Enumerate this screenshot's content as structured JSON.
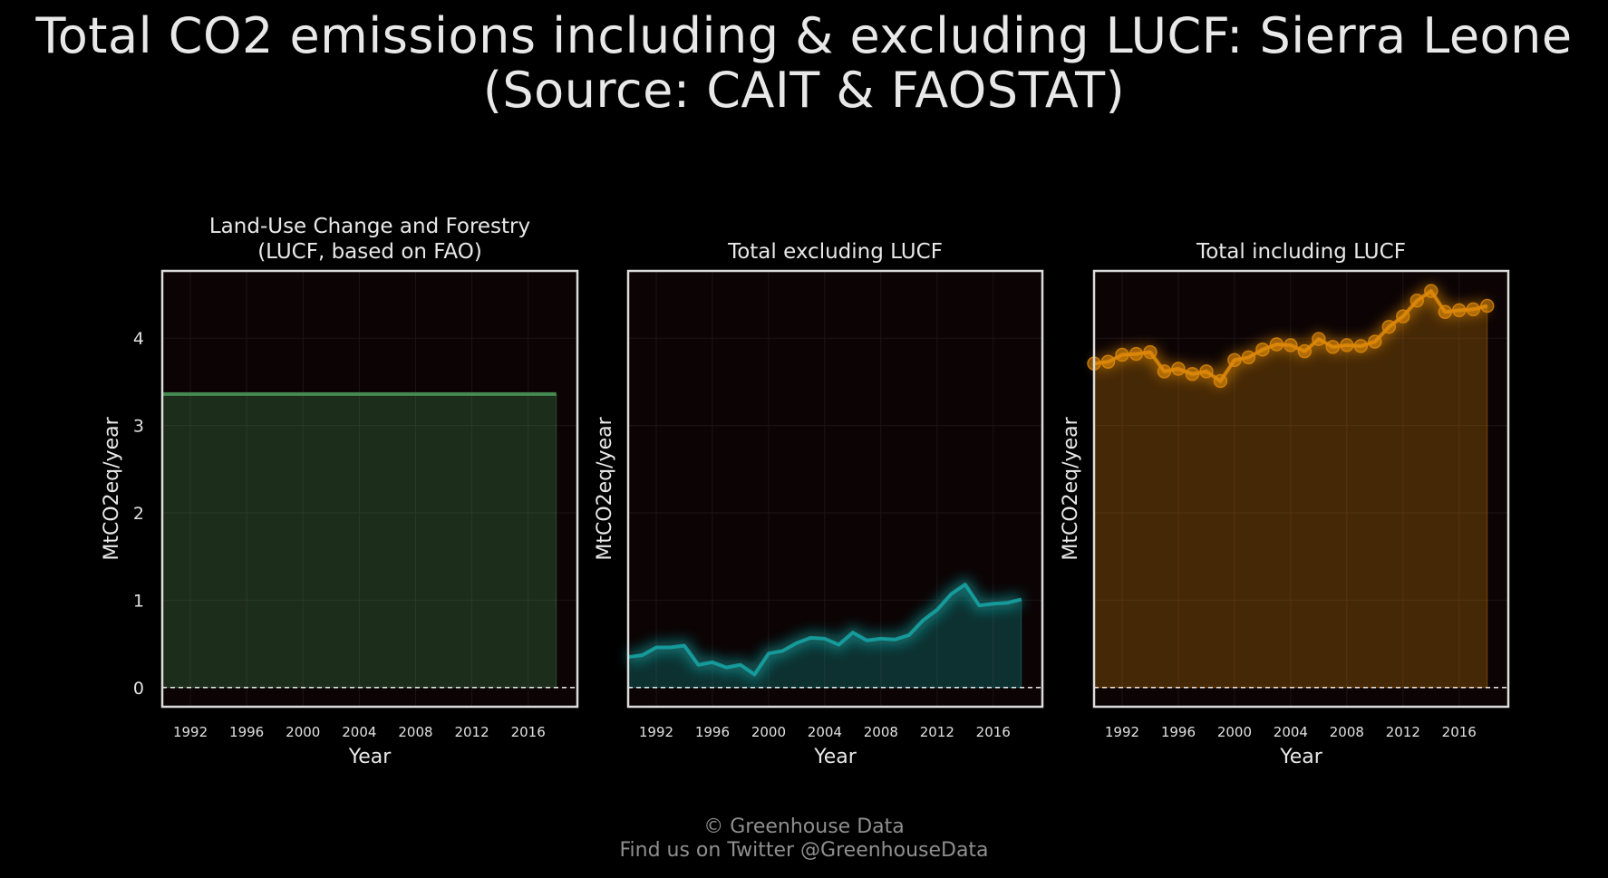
{
  "title_line1": "Total CO2 emissions including & excluding LUCF: Sierra Leone",
  "title_line2": "(Source: CAIT & FAOSTAT)",
  "credit_line1": "© Greenhouse Data",
  "credit_line2": "Find us on Twitter @GreenhouseData",
  "colors": {
    "background": "#000000",
    "panel_bg": "#0b0304",
    "lucf": "#4e9a5a",
    "excl": "#17a5a5",
    "incl": "#e08a0a",
    "frame": "#dcdcdc"
  },
  "chart_data": [
    {
      "type": "area",
      "title": "Land-Use Change and Forestry (LUCF, based on FAO)",
      "title_lines": [
        "Land-Use Change and Forestry",
        "(LUCF, based on FAO)"
      ],
      "xlabel": "Year",
      "ylabel": "MtCO2eq/year",
      "xlim": [
        1990,
        2019.5
      ],
      "ylim": [
        -0.22,
        4.77
      ],
      "xticks": [
        1992,
        1996,
        2000,
        2004,
        2008,
        2012,
        2016
      ],
      "yticks": [
        0,
        1,
        2,
        3,
        4
      ],
      "show_yticks": true,
      "markers": false,
      "color": "#4e9a5a",
      "x": [
        1990,
        1991,
        1992,
        1993,
        1994,
        1995,
        1996,
        1997,
        1998,
        1999,
        2000,
        2001,
        2002,
        2003,
        2004,
        2005,
        2006,
        2007,
        2008,
        2009,
        2010,
        2011,
        2012,
        2013,
        2014,
        2015,
        2016,
        2017,
        2018
      ],
      "y": [
        3.36,
        3.36,
        3.36,
        3.36,
        3.36,
        3.36,
        3.36,
        3.36,
        3.36,
        3.36,
        3.36,
        3.36,
        3.36,
        3.36,
        3.36,
        3.36,
        3.36,
        3.36,
        3.36,
        3.36,
        3.36,
        3.36,
        3.36,
        3.36,
        3.36,
        3.36,
        3.36,
        3.36,
        3.36
      ]
    },
    {
      "type": "area",
      "title": "Total excluding LUCF",
      "title_lines": [
        "Total excluding LUCF"
      ],
      "xlabel": "Year",
      "ylabel": "MtCO2eq/year",
      "xlim": [
        1990,
        2019.5
      ],
      "ylim": [
        -0.22,
        4.77
      ],
      "xticks": [
        1992,
        1996,
        2000,
        2004,
        2008,
        2012,
        2016
      ],
      "yticks": [
        0,
        1,
        2,
        3,
        4
      ],
      "show_yticks": false,
      "markers": false,
      "color": "#17a5a5",
      "x": [
        1990,
        1991,
        1992,
        1993,
        1994,
        1995,
        1996,
        1997,
        1998,
        1999,
        2000,
        2001,
        2002,
        2003,
        2004,
        2005,
        2006,
        2007,
        2008,
        2009,
        2010,
        2011,
        2012,
        2013,
        2014,
        2015,
        2016,
        2017,
        2018
      ],
      "y": [
        0.35,
        0.37,
        0.46,
        0.46,
        0.48,
        0.26,
        0.29,
        0.23,
        0.26,
        0.15,
        0.39,
        0.42,
        0.51,
        0.57,
        0.56,
        0.49,
        0.63,
        0.54,
        0.56,
        0.55,
        0.6,
        0.77,
        0.89,
        1.07,
        1.18,
        0.94,
        0.96,
        0.97,
        1.01
      ]
    },
    {
      "type": "area",
      "title": "Total including LUCF",
      "title_lines": [
        "Total including LUCF"
      ],
      "xlabel": "Year",
      "ylabel": "MtCO2eq/year",
      "xlim": [
        1990,
        2019.5
      ],
      "ylim": [
        -0.22,
        4.77
      ],
      "xticks": [
        1992,
        1996,
        2000,
        2004,
        2008,
        2012,
        2016
      ],
      "yticks": [
        0,
        1,
        2,
        3,
        4
      ],
      "show_yticks": false,
      "markers": true,
      "color": "#e08a0a",
      "x": [
        1990,
        1991,
        1992,
        1993,
        1994,
        1995,
        1996,
        1997,
        1998,
        1999,
        2000,
        2001,
        2002,
        2003,
        2004,
        2005,
        2006,
        2007,
        2008,
        2009,
        2010,
        2011,
        2012,
        2013,
        2014,
        2015,
        2016,
        2017,
        2018
      ],
      "y": [
        3.71,
        3.73,
        3.81,
        3.82,
        3.84,
        3.62,
        3.65,
        3.59,
        3.62,
        3.51,
        3.75,
        3.78,
        3.87,
        3.93,
        3.92,
        3.85,
        3.99,
        3.9,
        3.92,
        3.91,
        3.96,
        4.13,
        4.25,
        4.43,
        4.54,
        4.3,
        4.32,
        4.33,
        4.37
      ]
    }
  ]
}
